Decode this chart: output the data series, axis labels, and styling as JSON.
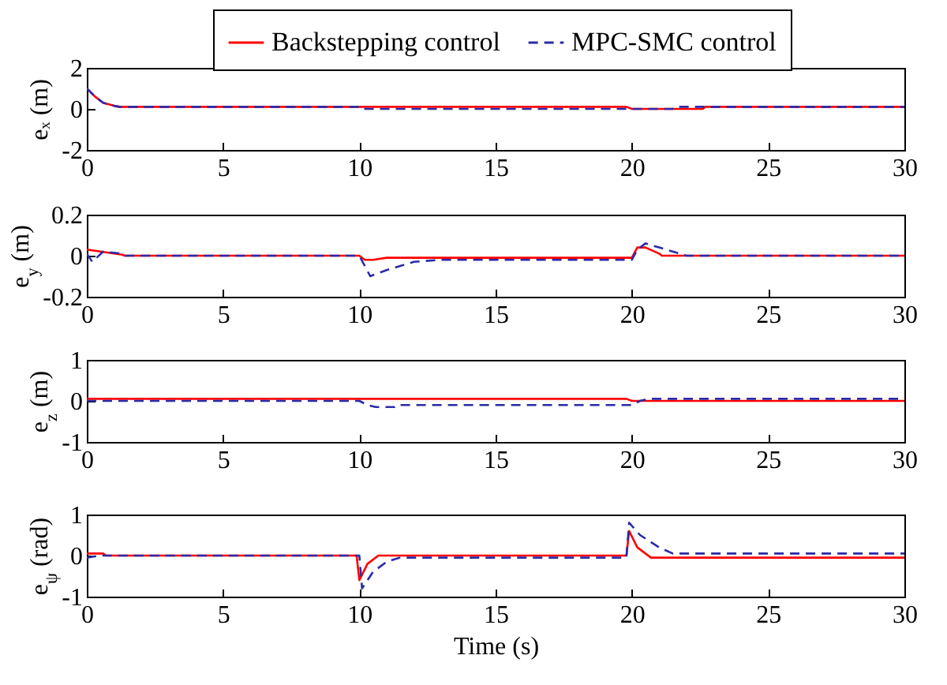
{
  "chart_data": [
    {
      "type": "line",
      "ylabel": "eₓ (m)",
      "xlim": [
        0,
        30
      ],
      "xticks": [
        0,
        5,
        10,
        15,
        20,
        25,
        30
      ],
      "ylim": [
        -2,
        2
      ],
      "yticks": [
        -2,
        0,
        2
      ],
      "legend": "top right",
      "series": [
        {
          "name": "Backstepping control",
          "color": "#ff0000",
          "line_style": "solid",
          "x": [
            0,
            0.3,
            0.6,
            1,
            1.2,
            19.8,
            20,
            22.6,
            22.7,
            30
          ],
          "values": [
            1,
            0.6,
            0.3,
            0.15,
            0.1,
            0.1,
            0,
            0,
            0.1,
            0.1
          ]
        },
        {
          "name": "MPC-SMC control",
          "color": "#2b2ba8",
          "line_style": "dashed",
          "x": [
            0,
            0.3,
            0.6,
            1,
            1.2,
            10,
            10.1,
            21.5,
            21.6,
            30
          ],
          "values": [
            1,
            0.6,
            0.3,
            0.15,
            0.1,
            0.1,
            0,
            0,
            0.1,
            0.1
          ]
        }
      ]
    },
    {
      "type": "line",
      "ylabel": "e$_{y}$ (m)",
      "xlim": [
        0,
        30
      ],
      "xticks": [
        0,
        5,
        10,
        15,
        20,
        25,
        30
      ],
      "ylim": [
        -0.2,
        0.2
      ],
      "yticks": [
        -0.2,
        0,
        0.2
      ],
      "series": [
        {
          "color": "#ff0000",
          "line_style": "solid",
          "x": [
            0,
            0.5,
            1.3,
            1.4,
            10,
            10.2,
            10.5,
            11,
            20,
            20.2,
            20.5,
            21,
            21.1,
            30
          ],
          "values": [
            0.03,
            0.02,
            0.005,
            0,
            0,
            -0.02,
            -0.02,
            -0.01,
            -0.01,
            0.04,
            0.04,
            0.01,
            0,
            0
          ]
        },
        {
          "color": "#2b2ba8",
          "line_style": "dashed",
          "x": [
            0,
            0.2,
            0.6,
            1.3,
            1.4,
            10,
            10.4,
            11,
            12,
            13,
            20,
            20.2,
            20.5,
            21,
            21.5,
            22,
            30
          ],
          "values": [
            0.01,
            -0.03,
            0.02,
            0.01,
            0,
            0,
            -0.1,
            -0.07,
            -0.03,
            -0.02,
            -0.02,
            0.03,
            0.06,
            0.04,
            0.02,
            0,
            0
          ]
        }
      ]
    },
    {
      "type": "line",
      "ylabel": "e$_{z}$ (m)",
      "xlim": [
        0,
        30
      ],
      "xticks": [
        0,
        5,
        10,
        15,
        20,
        25,
        30
      ],
      "ylim": [
        -1,
        1
      ],
      "yticks": [
        -1,
        0,
        1
      ],
      "series": [
        {
          "color": "#ff0000",
          "line_style": "solid",
          "x": [
            0,
            19.8,
            20,
            30
          ],
          "values": [
            0.05,
            0.05,
            0,
            0
          ]
        },
        {
          "color": "#2b2ba8",
          "line_style": "dashed",
          "x": [
            0,
            10,
            10.3,
            10.6,
            11.3,
            11.4,
            20,
            20.3,
            20.6,
            30
          ],
          "values": [
            0,
            0,
            -0.1,
            -0.15,
            -0.15,
            -0.1,
            -0.1,
            0,
            0.05,
            0.05
          ]
        }
      ]
    },
    {
      "type": "line",
      "ylabel": "e$_{ψ}$ (rad)",
      "xlabel": "Time (s)",
      "xlim": [
        0,
        30
      ],
      "xticks": [
        0,
        5,
        10,
        15,
        20,
        25,
        30
      ],
      "ylim": [
        -1,
        1
      ],
      "yticks": [
        -1,
        0,
        1
      ],
      "series": [
        {
          "color": "#ff0000",
          "line_style": "solid",
          "x": [
            0,
            0.6,
            0.7,
            9.9,
            10,
            10.3,
            10.7,
            19.8,
            19.9,
            20.2,
            20.7,
            30
          ],
          "values": [
            0.05,
            0.05,
            0,
            0,
            -0.6,
            -0.2,
            0,
            0,
            0.6,
            0.2,
            -0.05,
            -0.05
          ]
        },
        {
          "color": "#2b2ba8",
          "line_style": "dashed",
          "x": [
            0,
            0.5,
            10,
            10.1,
            10.5,
            11,
            11.5,
            19.8,
            19.9,
            20.3,
            21,
            21.5,
            30
          ],
          "values": [
            -0.05,
            0,
            0,
            -0.8,
            -0.4,
            -0.15,
            -0.05,
            -0.05,
            0.8,
            0.5,
            0.2,
            0.05,
            0.05
          ]
        }
      ]
    }
  ]
}
